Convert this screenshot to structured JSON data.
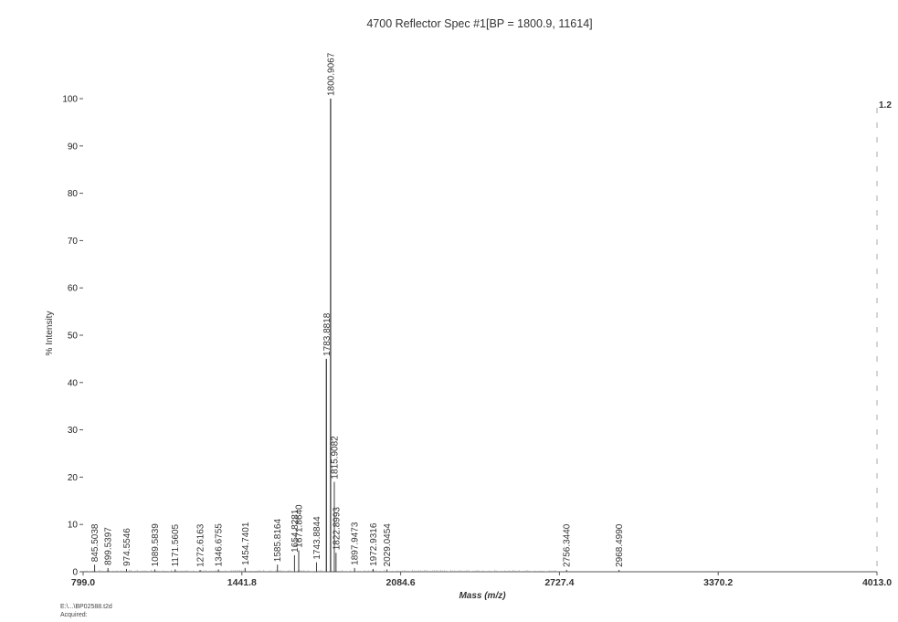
{
  "chart_data": {
    "type": "bar",
    "title": "4700 Reflector Spec #1[BP = 1800.9, 11614]",
    "xlabel": "Mass (m/z)",
    "ylabel": "% Intensity",
    "xlim": [
      799.0,
      4013.0
    ],
    "ylim": [
      0,
      100
    ],
    "x_ticks": [
      "799.0",
      "1441.8",
      "2084.6",
      "2727.4",
      "3370.2",
      "4013.0"
    ],
    "x_tick_values": [
      799.0,
      1441.8,
      2084.6,
      2727.4,
      3370.2,
      4013.0
    ],
    "y_ticks": [
      "0",
      "10",
      "20",
      "30",
      "40",
      "50",
      "60",
      "70",
      "80",
      "90",
      "100"
    ],
    "y_tick_values": [
      0,
      10,
      20,
      30,
      40,
      50,
      60,
      70,
      80,
      90,
      100
    ],
    "right_axis_label": "1.2",
    "grid": false,
    "legend": "none",
    "peaks": [
      {
        "mass": 845.5038,
        "label": "845.5038",
        "intensity": 1.5
      },
      {
        "mass": 899.5397,
        "label": "899.5397",
        "intensity": 0.8
      },
      {
        "mass": 974.5546,
        "label": "974.5546",
        "intensity": 0.6
      },
      {
        "mass": 1089.5839,
        "label": "1089.5839",
        "intensity": 0.5
      },
      {
        "mass": 1171.5605,
        "label": "1171.5605",
        "intensity": 0.5
      },
      {
        "mass": 1272.6163,
        "label": "1272.6163",
        "intensity": 0.4
      },
      {
        "mass": 1346.6755,
        "label": "1346.6755",
        "intensity": 0.5
      },
      {
        "mass": 1454.7401,
        "label": "1454.7401",
        "intensity": 0.8
      },
      {
        "mass": 1585.8164,
        "label": "1585.8164",
        "intensity": 1.5
      },
      {
        "mass": 1654.8281,
        "label": "1654.8281",
        "intensity": 3.5
      },
      {
        "mass": 1671.864,
        "label": "1671.8640",
        "intensity": 4.5
      },
      {
        "mass": 1743.8844,
        "label": "1743.8844",
        "intensity": 2.0
      },
      {
        "mass": 1783.8818,
        "label": "1783.8818",
        "intensity": 45.0
      },
      {
        "mass": 1800.9067,
        "label": "1800.9067",
        "intensity": 100.0
      },
      {
        "mass": 1815.9082,
        "label": "1815.9082",
        "intensity": 19.0
      },
      {
        "mass": 1822.8993,
        "label": "1822.8993",
        "intensity": 4.0
      },
      {
        "mass": 1897.9473,
        "label": "1897.9473",
        "intensity": 0.8
      },
      {
        "mass": 1972.9316,
        "label": "1972.9316",
        "intensity": 0.6
      },
      {
        "mass": 2029.0454,
        "label": "2029.0454",
        "intensity": 0.5
      },
      {
        "mass": 2756.344,
        "label": "2756.3440",
        "intensity": 0.4
      },
      {
        "mass": 2968.499,
        "label": "2968.4990",
        "intensity": 0.4
      }
    ]
  },
  "footer": {
    "file": "E:\\...\\BP02588.t2d",
    "acquired": "Acquired:"
  }
}
